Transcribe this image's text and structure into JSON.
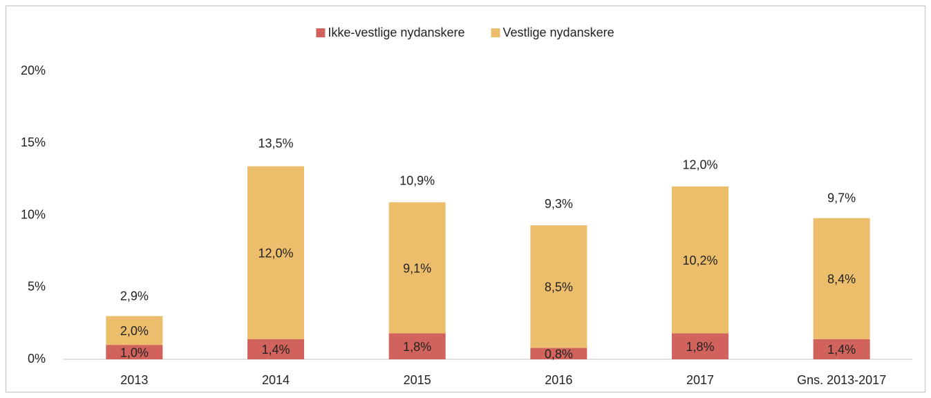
{
  "chart_data": {
    "type": "stacked_bar",
    "categories": [
      "2013",
      "2014",
      "2015",
      "2016",
      "2017",
      "Gns. 2013-2017"
    ],
    "series": [
      {
        "name": "Ikke-vestlige nydanskere",
        "color": "#d1625c",
        "values": [
          1.0,
          1.4,
          1.8,
          0.8,
          1.8,
          1.4
        ],
        "value_labels": [
          "1,0%",
          "1,4%",
          "1,8%",
          "0,8%",
          "1,8%",
          "1,4%"
        ]
      },
      {
        "name": "Vestlige nydanskere",
        "color": "#ecbe6c",
        "values": [
          2.0,
          12.0,
          9.1,
          8.5,
          10.2,
          8.4
        ],
        "value_labels": [
          "2,0%",
          "12,0%",
          "9,1%",
          "8,5%",
          "10,2%",
          "8,4%"
        ]
      }
    ],
    "totals": [
      2.9,
      13.5,
      10.9,
      9.3,
      12.0,
      9.7
    ],
    "total_labels": [
      "2,9%",
      "13,5%",
      "10,9%",
      "9,3%",
      "12,0%",
      "9,7%"
    ],
    "ylim": [
      0,
      20
    ],
    "yticks": [
      {
        "value": 0,
        "label": "0%"
      },
      {
        "value": 5,
        "label": "5%"
      },
      {
        "value": 10,
        "label": "10%"
      },
      {
        "value": 15,
        "label": "15%"
      },
      {
        "value": 20,
        "label": "20%"
      }
    ],
    "legend": "top"
  }
}
